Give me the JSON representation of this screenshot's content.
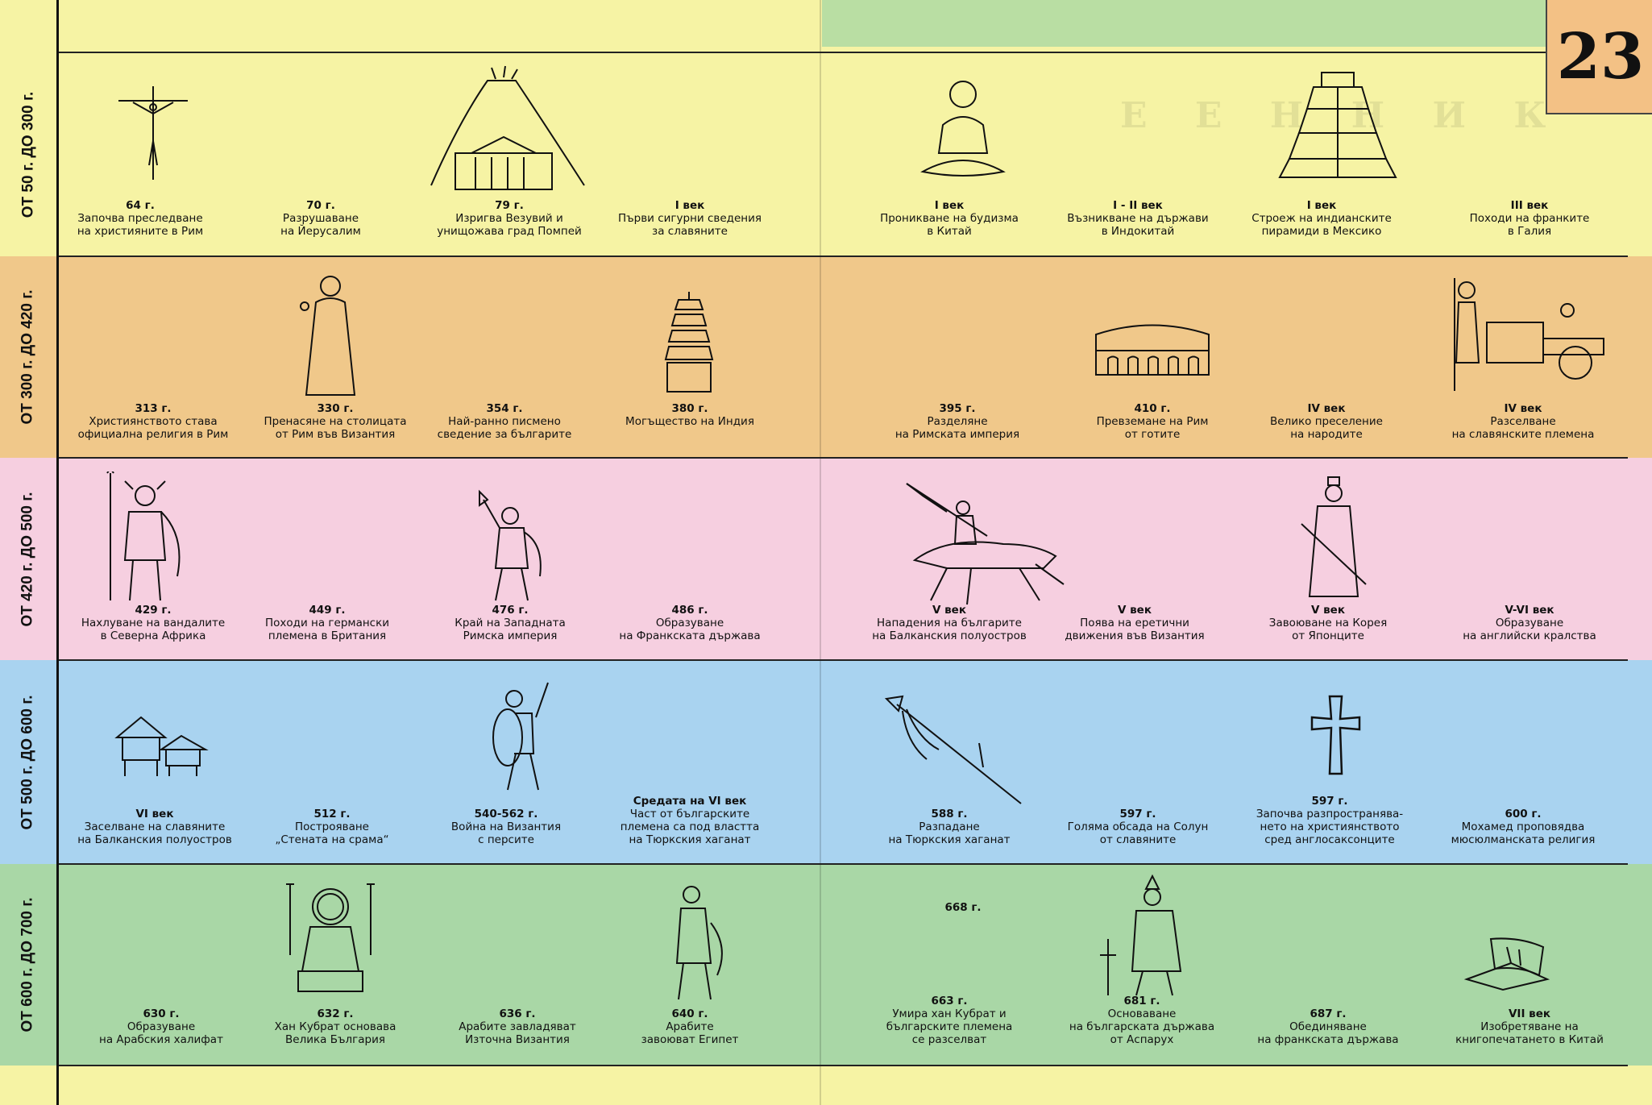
{
  "page_number": "23",
  "watermark_text": "Е Е Н Н И К",
  "rows": [
    {
      "label": "ОТ 50 г.  ДО 300 г.",
      "events": [
        {
          "date": "64 г.",
          "text": "Започва преследване\nна християните в Рим",
          "icon": "crucifix-icon"
        },
        {
          "date": "70 г.",
          "text": "Разрушаване\nна Йерусалим",
          "icon": ""
        },
        {
          "date": "79 г.",
          "text": "Изригва Везувий и\nунищожава град Помпей",
          "icon": "volcano-temple-icon"
        },
        {
          "date": "I век",
          "text": "Първи сигурни сведения\nза славяните",
          "icon": ""
        },
        {
          "date": "I век",
          "text": "Проникване на будизма\nв Китай",
          "icon": "buddha-icon"
        },
        {
          "date": "I - II век",
          "text": "Възникване на държави\nв Индокитай",
          "icon": ""
        },
        {
          "date": "I век",
          "text": "Строеж на индианските\nпирамиди в Мексико",
          "icon": "pyramid-icon"
        },
        {
          "date": "III век",
          "text": "Походи на франките\nв Галия",
          "icon": ""
        }
      ]
    },
    {
      "label": "ОТ 300 г.  ДО 420 г.",
      "events": [
        {
          "date": "313 г.",
          "text": "Християнството става\nофициална религия в Рим",
          "icon": ""
        },
        {
          "date": "330 г.",
          "text": "Пренасяне на столицата\nот Рим във Византия",
          "icon": "emperor-icon"
        },
        {
          "date": "354 г.",
          "text": "Най-ранно писмено\nсведение за българите",
          "icon": ""
        },
        {
          "date": "380 г.",
          "text": "Могъщество на Индия",
          "icon": "pagoda-icon"
        },
        {
          "date": "395 г.",
          "text": "Разделяне\nна Римската империя",
          "icon": ""
        },
        {
          "date": "410 г.",
          "text": "Превземане на Рим\nот готите",
          "icon": "colosseum-icon"
        },
        {
          "date": "IV век",
          "text": "Велико преселение\nна народите",
          "icon": ""
        },
        {
          "date": "IV век",
          "text": "Разселване\nна славянските племена",
          "icon": "ox-cart-icon"
        }
      ]
    },
    {
      "label": "ОТ 420 г.  ДО 500 г.",
      "events": [
        {
          "date": "429 г.",
          "text": "Нахлуване на вандалите\nв Северна Африка",
          "icon": "viking-spear-icon"
        },
        {
          "date": "449 г.",
          "text": "Походи на германски\nплемена в Британия",
          "icon": ""
        },
        {
          "date": "476 г.",
          "text": "Край на Западната\nРимска империя",
          "icon": "barbarian-axe-icon"
        },
        {
          "date": "486 г.",
          "text": "Образуване\nна Франкската държава",
          "icon": ""
        },
        {
          "date": "V век",
          "text": "Нападения на българите\nна Балканския полуостров",
          "icon": "horseman-icon"
        },
        {
          "date": "V век",
          "text": "Поява на еретични\nдвижения във Византия",
          "icon": ""
        },
        {
          "date": "V век",
          "text": "Завоюване на Корея\nот Японците",
          "icon": "samurai-icon"
        },
        {
          "date": "V-VI век",
          "text": "Образуване\nна английски кралства",
          "icon": ""
        }
      ]
    },
    {
      "label": "ОТ 500 г.  ДО 600 г.",
      "events": [
        {
          "date": "VI век",
          "text": "Заселване на славяните\nна Балканския полуостров",
          "icon": "huts-icon"
        },
        {
          "date": "512 г.",
          "text": "Построяване\n„Стената на срама“",
          "icon": ""
        },
        {
          "date": "540-562 г.",
          "text": "Война на Византия\nс персите",
          "icon": "warrior-shield-icon"
        },
        {
          "date": "Средата на VI век",
          "text": "Част от българските\nплемена са под властта\nна Тюркския хаганат",
          "icon": ""
        },
        {
          "date": "588 г.",
          "text": "Разпадане\nна Тюркския хаганат",
          "icon": "spear-icon"
        },
        {
          "date": "597 г.",
          "text": "Голяма обсада на Солун\nот славяните",
          "icon": ""
        },
        {
          "date": "597 г.",
          "text": "Започва разпространява-\nнето на християнството\nсред англосаксонците",
          "icon": "cross-icon"
        },
        {
          "date": "600 г.",
          "text": "Мохамед проповядва\nмюсюлманската религия",
          "icon": ""
        }
      ]
    },
    {
      "label": "ОТ 600 г.  ДО 700 г.",
      "events": [
        {
          "date": "630 г.",
          "text": "Образуване\nна Арабския халифат",
          "icon": ""
        },
        {
          "date": "632 г.",
          "text": "Хан  Кубрат основава\nВелика България",
          "icon": "khan-throne-icon"
        },
        {
          "date": "636 г.",
          "text": "Арабите завладяват\nИзточна Византия",
          "icon": ""
        },
        {
          "date": "640 г.",
          "text": "Арабите\nзавоюват Египет",
          "icon": "arab-warrior-icon"
        },
        {
          "date": "663 г.",
          "text": "Умира хан Кубрат и\nбългарските племена\nсе разселват",
          "icon": ""
        },
        {
          "date": "681 г.",
          "text": "Основаване\nна българската държава\nот Аспарух",
          "icon": "asparuh-icon"
        },
        {
          "date": "687 г.",
          "text": "Обединяване\nна франкската държава",
          "icon": ""
        },
        {
          "date": "VII век",
          "text": "Изобретяване на\nкнигопечатането в Китай",
          "icon": "scroll-icon"
        }
      ],
      "extra": {
        "date": "668 г."
      }
    }
  ]
}
